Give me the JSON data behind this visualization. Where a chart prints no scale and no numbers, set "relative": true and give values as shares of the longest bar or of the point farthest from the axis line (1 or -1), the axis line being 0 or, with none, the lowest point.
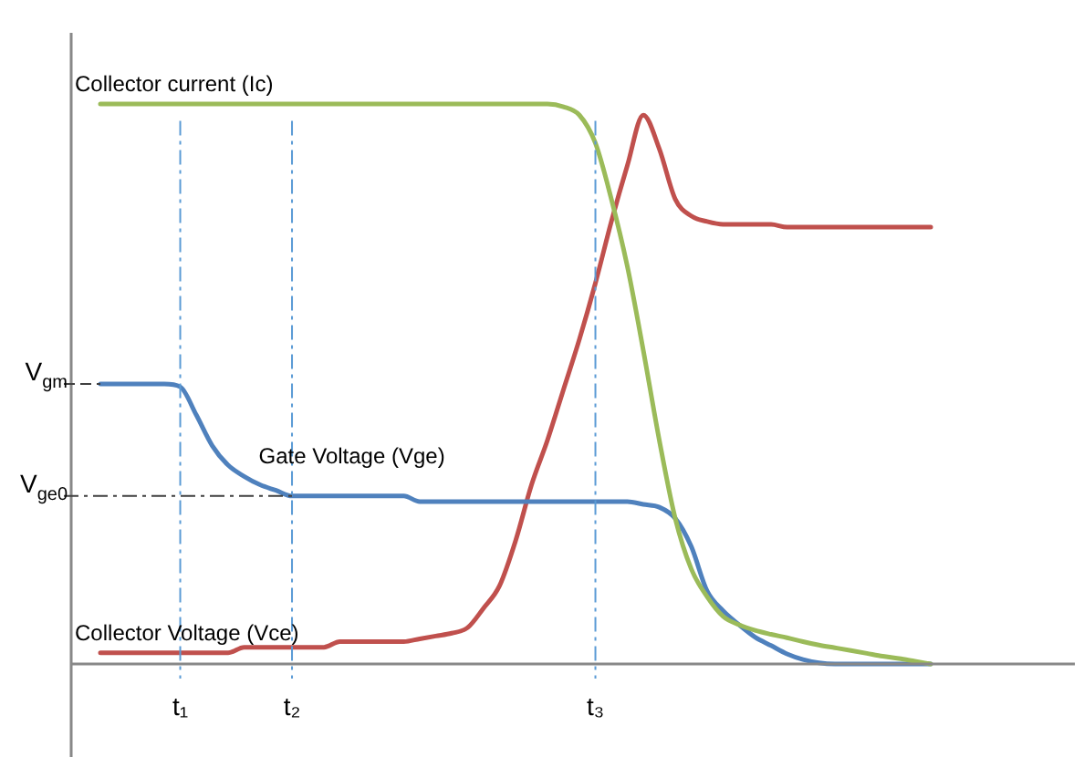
{
  "chart_data": {
    "type": "line",
    "relative": true,
    "categories": [
      null,
      null,
      null,
      null,
      null,
      "t₁",
      null,
      null,
      null,
      null,
      null,
      null,
      "t₂",
      null,
      null,
      null,
      null,
      null,
      null,
      null,
      null,
      null,
      null,
      null,
      null,
      null,
      null,
      null,
      null,
      null,
      null,
      "t₃",
      null,
      null,
      null,
      null,
      null,
      null,
      null,
      null,
      null,
      null,
      null,
      null,
      null,
      null,
      null,
      null,
      null,
      null,
      null,
      null,
      null
    ],
    "series": [
      {
        "name": "Collector current (Ic)",
        "color": "#9bbb59",
        "values": [
          1.0,
          1.0,
          1.0,
          1.0,
          1.0,
          1.0,
          1.0,
          1.0,
          1.0,
          1.0,
          1.0,
          1.0,
          1.0,
          1.0,
          1.0,
          1.0,
          1.0,
          1.0,
          1.0,
          1.0,
          1.0,
          1.0,
          1.0,
          1.0,
          1.0,
          1.0,
          1.0,
          1.0,
          1.0,
          0.995,
          0.98,
          0.93,
          0.83,
          0.71,
          0.56,
          0.4,
          0.26,
          0.17,
          0.12,
          0.085,
          0.07,
          0.06,
          0.053,
          0.047,
          0.04,
          0.034,
          0.029,
          0.024,
          0.019,
          0.014,
          0.01,
          0.005,
          0.0
        ]
      },
      {
        "name": "Gate Voltage (Vge)",
        "color": "#4f81bd",
        "values": [
          0.5,
          0.5,
          0.5,
          0.5,
          0.5,
          0.495,
          0.445,
          0.39,
          0.355,
          0.335,
          0.32,
          0.31,
          0.3,
          0.3,
          0.3,
          0.3,
          0.3,
          0.3,
          0.3,
          0.3,
          0.29,
          0.29,
          0.29,
          0.29,
          0.29,
          0.29,
          0.29,
          0.29,
          0.29,
          0.29,
          0.29,
          0.29,
          0.29,
          0.29,
          0.285,
          0.28,
          0.26,
          0.21,
          0.13,
          0.095,
          0.07,
          0.048,
          0.033,
          0.018,
          0.008,
          0.002,
          0.0,
          0.0,
          0.0,
          0.0,
          0.0,
          0.0,
          0.0
        ]
      },
      {
        "name": "Collector Voltage (Vce)",
        "color": "#c0504d",
        "values": [
          0.02,
          0.02,
          0.02,
          0.02,
          0.02,
          0.02,
          0.02,
          0.02,
          0.02,
          0.03,
          0.03,
          0.03,
          0.03,
          0.03,
          0.03,
          0.04,
          0.04,
          0.04,
          0.04,
          0.04,
          0.045,
          0.05,
          0.055,
          0.065,
          0.1,
          0.14,
          0.22,
          0.32,
          0.4,
          0.49,
          0.58,
          0.68,
          0.79,
          0.89,
          0.98,
          0.92,
          0.83,
          0.8,
          0.79,
          0.785,
          0.785,
          0.785,
          0.785,
          0.78,
          0.78,
          0.78,
          0.78,
          0.78,
          0.78,
          0.78,
          0.78,
          0.78,
          0.78
        ]
      }
    ],
    "ref_lines": [
      {
        "axis": "x",
        "value": "t₁",
        "color": "#5b9bd5",
        "line_style": "dashdot"
      },
      {
        "axis": "x",
        "value": "t₂",
        "color": "#5b9bd5",
        "line_style": "dashdot"
      },
      {
        "axis": "x",
        "value": "t₃",
        "color": "#5b9bd5",
        "line_style": "dashdot"
      },
      {
        "axis": "y",
        "value": 0.5,
        "label": "V$_{gm}$",
        "color": "#404040",
        "line_style": "dashed"
      },
      {
        "axis": "y",
        "value": 0.3,
        "label": "V$_{ge0}$",
        "color": "#404040",
        "line_style": "dashdot"
      }
    ],
    "line_style": "solid"
  }
}
